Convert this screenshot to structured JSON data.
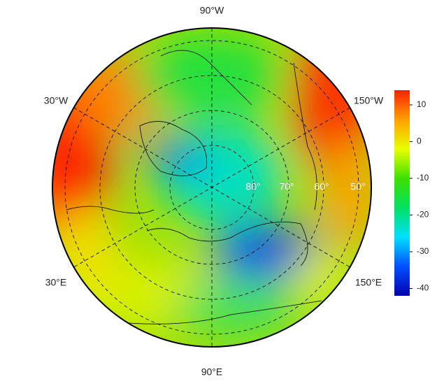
{
  "map": {
    "longitude_labels": {
      "top": "90°W",
      "upper_left": "30°W",
      "upper_right": "150°W",
      "lower_left": "30°E",
      "lower_right": "150°E",
      "bottom": "90°E"
    },
    "latitude_labels": [
      "80°",
      "70°",
      "60°",
      "50°"
    ]
  },
  "colorbar": {
    "lim": [
      -42,
      14
    ],
    "ticks": [
      10,
      0,
      -10,
      -20,
      -30,
      -40
    ],
    "colors": [
      "#0000b0",
      "#0050ff",
      "#00e0ff",
      "#00e060",
      "#40e000",
      "#e8ff00",
      "#ffa000",
      "#ff2000"
    ]
  }
}
